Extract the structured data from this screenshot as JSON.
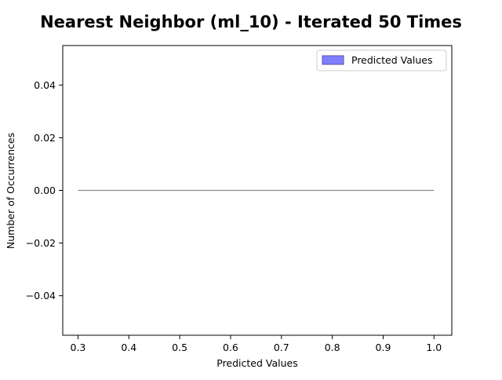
{
  "chart_data": {
    "type": "histogram",
    "title": "Nearest Neighbor (ml_10) - Iterated 50 Times",
    "xlabel": "Predicted Values",
    "ylabel": "Number of Occurrences",
    "xlim": [
      0.27,
      1.035
    ],
    "ylim": [
      -0.055,
      0.055
    ],
    "x_ticks": [
      0.3,
      0.4,
      0.5,
      0.6,
      0.7,
      0.8,
      0.9,
      1.0
    ],
    "x_tick_labels": [
      "0.3",
      "0.4",
      "0.5",
      "0.6",
      "0.7",
      "0.8",
      "0.9",
      "1.0"
    ],
    "y_ticks": [
      -0.04,
      -0.02,
      0.0,
      0.02,
      0.04
    ],
    "y_tick_labels": [
      "−0.04",
      "−0.02",
      "0.00",
      "0.02",
      "0.04"
    ],
    "grid": false,
    "legend_position": "top-right",
    "series": [
      {
        "name": "Predicted Values",
        "color": "#8080ff",
        "edge_color": "#5555aa",
        "bins": {
          "x_start": 0.3,
          "x_end": 1.0,
          "counts_all_zero": true,
          "value": 0
        }
      }
    ],
    "baseline": {
      "y": 0,
      "x_start": 0.3,
      "x_end": 1.0,
      "color": "#888888"
    }
  }
}
